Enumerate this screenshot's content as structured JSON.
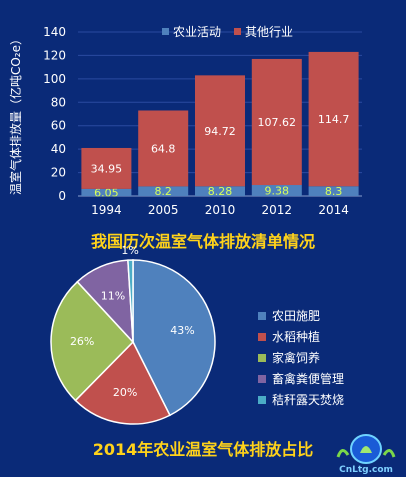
{
  "bar_title": "我国历次温室气体排放清单情况",
  "pie_title": "2014年农业温室气体排放占比",
  "logo_text": "CnLtg.com",
  "chart_data": [
    {
      "type": "bar",
      "stacked": true,
      "categories": [
        "1994",
        "2005",
        "2010",
        "2012",
        "2014"
      ],
      "ylabel": "温室气体排放量（亿吨CO₂e）",
      "ylim": [
        0,
        140
      ],
      "yticks": [
        0,
        20,
        40,
        60,
        80,
        100,
        120,
        140
      ],
      "legend_position": "top-right",
      "series": [
        {
          "name": "农业活动",
          "color": "#4f81bd",
          "values": [
            6.05,
            8.2,
            8.28,
            9.38,
            8.3
          ],
          "labels": [
            "6.05",
            "8.2",
            "8.28",
            "9.38",
            "8.3"
          ]
        },
        {
          "name": "其他行业",
          "color": "#c0504d",
          "values": [
            34.95,
            64.8,
            94.72,
            107.62,
            114.7
          ],
          "labels": [
            "34.95",
            "64.8",
            "94.72",
            "107.62",
            "114.7"
          ]
        }
      ]
    },
    {
      "type": "pie",
      "legend_position": "right",
      "slices": [
        {
          "label": "农田施肥",
          "value": 43,
          "color": "#4f81bd",
          "text": "43%"
        },
        {
          "label": "水稻种植",
          "value": 20,
          "color": "#c0504d",
          "text": "20%"
        },
        {
          "label": "家禽饲养",
          "value": 26,
          "color": "#9bbb59",
          "text": "26%"
        },
        {
          "label": "畜禽粪便管理",
          "value": 11,
          "color": "#8064a2",
          "text": "11%"
        },
        {
          "label": "秸秆露天焚烧",
          "value": 1,
          "color": "#4bacc6",
          "text": "1%"
        }
      ]
    }
  ]
}
